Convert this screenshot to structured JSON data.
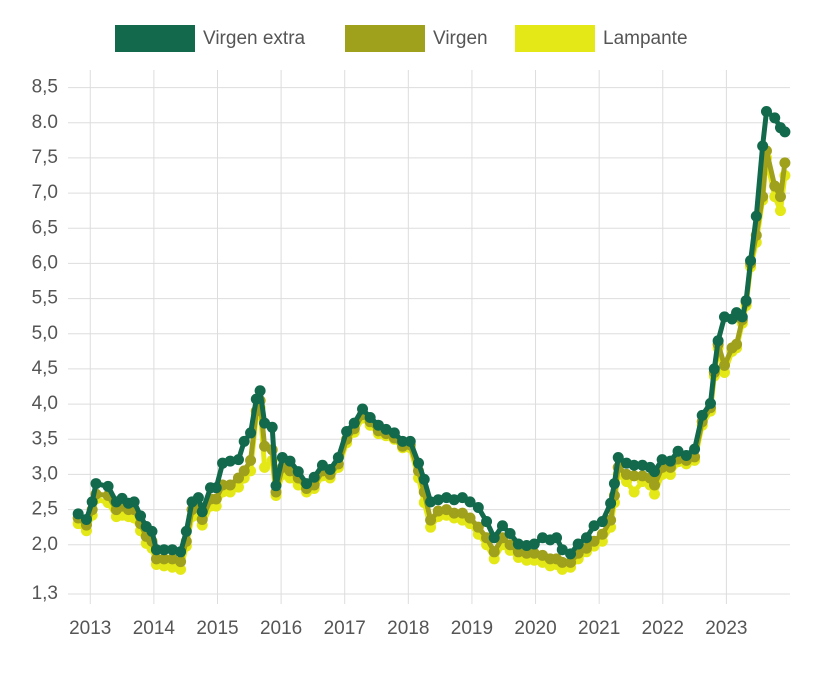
{
  "chart_data": {
    "type": "line",
    "x": [
      2012.81,
      2012.94,
      2013.03,
      2013.09,
      2013.28,
      2013.41,
      2013.5,
      2013.6,
      2013.69,
      2013.79,
      2013.88,
      2013.97,
      2014.04,
      2014.16,
      2014.29,
      2014.42,
      2014.51,
      2014.6,
      2014.7,
      2014.76,
      2014.89,
      2014.98,
      2015.08,
      2015.2,
      2015.33,
      2015.42,
      2015.52,
      2015.61,
      2015.67,
      2015.74,
      2015.86,
      2015.92,
      2016.02,
      2016.14,
      2016.27,
      2016.4,
      2016.52,
      2016.65,
      2016.77,
      2016.9,
      2017.03,
      2017.15,
      2017.28,
      2017.4,
      2017.53,
      2017.65,
      2017.78,
      2017.91,
      2018.03,
      2018.16,
      2018.25,
      2018.35,
      2018.47,
      2018.6,
      2018.72,
      2018.85,
      2018.97,
      2019.1,
      2019.23,
      2019.35,
      2019.48,
      2019.6,
      2019.73,
      2019.86,
      2019.98,
      2020.11,
      2020.23,
      2020.33,
      2020.42,
      2020.55,
      2020.67,
      2020.8,
      2020.92,
      2021.05,
      2021.18,
      2021.24,
      2021.3,
      2021.43,
      2021.55,
      2021.68,
      2021.8,
      2021.87,
      2021.99,
      2022.12,
      2022.24,
      2022.37,
      2022.5,
      2022.62,
      2022.75,
      2022.81,
      2022.87,
      2022.97,
      2023.09,
      2023.16,
      2023.25,
      2023.31,
      2023.38,
      2023.47,
      2023.57,
      2023.63,
      2023.76,
      2023.85,
      2023.92
    ],
    "series": [
      {
        "name": "Virgen extra",
        "color": "#12694c",
        "values": [
          2.44,
          2.36,
          2.61,
          2.87,
          2.83,
          2.61,
          2.66,
          2.59,
          2.61,
          2.41,
          2.26,
          2.19,
          1.93,
          1.93,
          1.93,
          1.9,
          2.19,
          2.61,
          2.67,
          2.47,
          2.81,
          2.81,
          3.16,
          3.19,
          3.21,
          3.47,
          3.59,
          4.07,
          4.19,
          3.73,
          3.67,
          2.84,
          3.24,
          3.19,
          3.04,
          2.87,
          2.96,
          3.13,
          3.07,
          3.24,
          3.61,
          3.73,
          3.93,
          3.81,
          3.7,
          3.64,
          3.59,
          3.47,
          3.47,
          3.16,
          2.93,
          2.61,
          2.64,
          2.67,
          2.64,
          2.67,
          2.61,
          2.53,
          2.33,
          2.1,
          2.27,
          2.16,
          2.01,
          1.99,
          2.01,
          2.1,
          2.07,
          2.1,
          1.93,
          1.87,
          2.01,
          2.1,
          2.27,
          2.33,
          2.59,
          2.87,
          3.24,
          3.16,
          3.13,
          3.13,
          3.1,
          3.04,
          3.21,
          3.19,
          3.33,
          3.27,
          3.36,
          3.84,
          4.01,
          4.5,
          4.9,
          5.24,
          5.21,
          5.3,
          5.24,
          5.47,
          6.04,
          6.67,
          7.67,
          8.16,
          8.07,
          7.93,
          7.87
        ]
      },
      {
        "name": "Virgen",
        "color": "#9fa01b",
        "values": [
          2.38,
          2.28,
          2.5,
          2.72,
          2.7,
          2.5,
          2.55,
          2.5,
          2.5,
          2.3,
          2.12,
          2.05,
          1.8,
          1.8,
          1.8,
          1.76,
          2.05,
          2.5,
          2.55,
          2.36,
          2.65,
          2.65,
          2.85,
          2.85,
          2.95,
          3.05,
          3.2,
          3.9,
          4.05,
          3.4,
          3.35,
          2.75,
          3.1,
          3.05,
          2.95,
          2.8,
          2.85,
          3.05,
          3.0,
          3.15,
          3.5,
          3.65,
          3.85,
          3.75,
          3.62,
          3.58,
          3.52,
          3.4,
          3.42,
          3.05,
          2.75,
          2.35,
          2.48,
          2.5,
          2.45,
          2.45,
          2.38,
          2.25,
          2.1,
          1.9,
          2.1,
          2.0,
          1.9,
          1.88,
          1.88,
          1.85,
          1.8,
          1.8,
          1.75,
          1.75,
          1.88,
          1.95,
          2.05,
          2.15,
          2.35,
          2.7,
          3.1,
          3.0,
          2.98,
          2.98,
          2.95,
          2.85,
          3.1,
          3.1,
          3.22,
          3.2,
          3.25,
          3.75,
          3.95,
          4.45,
          4.85,
          4.55,
          4.8,
          4.85,
          5.2,
          5.45,
          6.0,
          6.4,
          6.95,
          7.6,
          7.1,
          6.95,
          7.43
        ]
      },
      {
        "name": "Lampante",
        "color": "#e4e816",
        "values": [
          2.3,
          2.2,
          2.42,
          2.65,
          2.6,
          2.4,
          2.42,
          2.4,
          2.38,
          2.2,
          2.02,
          1.95,
          1.72,
          1.7,
          1.68,
          1.65,
          1.98,
          2.4,
          2.42,
          2.28,
          2.55,
          2.55,
          2.75,
          2.75,
          2.82,
          2.95,
          3.05,
          3.85,
          3.95,
          3.1,
          3.2,
          2.7,
          3.0,
          2.95,
          2.85,
          2.75,
          2.8,
          2.98,
          2.95,
          3.1,
          3.45,
          3.6,
          3.8,
          3.7,
          3.58,
          3.55,
          3.5,
          3.38,
          3.38,
          2.95,
          2.6,
          2.25,
          2.4,
          2.42,
          2.38,
          2.35,
          2.3,
          2.15,
          2.0,
          1.8,
          2.0,
          1.92,
          1.82,
          1.78,
          1.78,
          1.75,
          1.7,
          1.72,
          1.65,
          1.68,
          1.8,
          1.9,
          1.98,
          2.05,
          2.25,
          2.6,
          3.0,
          2.9,
          2.75,
          2.9,
          2.85,
          2.72,
          3.0,
          3.0,
          3.18,
          3.15,
          3.2,
          3.7,
          3.9,
          4.4,
          4.8,
          4.45,
          4.75,
          4.8,
          5.15,
          5.4,
          5.95,
          6.3,
          6.9,
          7.5,
          6.95,
          6.75,
          7.25
        ]
      }
    ],
    "xlim": [
      2012.65,
      2024.0
    ],
    "xticks": [
      2013,
      2014,
      2015,
      2016,
      2017,
      2018,
      2019,
      2020,
      2021,
      2022,
      2023
    ],
    "ylim": [
      1.3,
      8.75
    ],
    "yticks": [
      {
        "value": 1.3,
        "label": "1,3"
      },
      {
        "value": 2.0,
        "label": "2,0"
      },
      {
        "value": 2.5,
        "label": "2,5"
      },
      {
        "value": 3.0,
        "label": "3,0"
      },
      {
        "value": 3.5,
        "label": "3,5"
      },
      {
        "value": 4.0,
        "label": "4,0"
      },
      {
        "value": 4.5,
        "label": "4,5"
      },
      {
        "value": 5.0,
        "label": "5,0"
      },
      {
        "value": 5.5,
        "label": "5,5"
      },
      {
        "value": 6.0,
        "label": "6,0"
      },
      {
        "value": 6.5,
        "label": "6,5"
      },
      {
        "value": 7.0,
        "label": "7,0"
      },
      {
        "value": 7.5,
        "label": "7,5"
      },
      {
        "value": 8.0,
        "label": "8.0"
      },
      {
        "value": 8.5,
        "label": "8,5"
      }
    ],
    "grid": true,
    "legend": "top"
  }
}
